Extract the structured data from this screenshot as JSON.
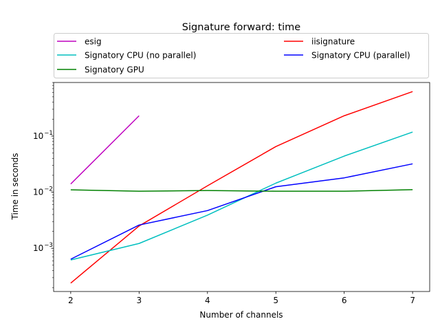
{
  "chart_data": {
    "type": "line",
    "title": "Signature forward: time",
    "xlabel": "Number of channels",
    "ylabel": "Time in seconds",
    "x_ticks": [
      2,
      3,
      4,
      5,
      6,
      7
    ],
    "xlim": [
      1.75,
      7.25
    ],
    "yscale": "log",
    "ylim": [
      0.00017,
      0.9
    ],
    "y_ticks": [
      {
        "value": 0.001,
        "label": "10",
        "exp": "−3"
      },
      {
        "value": 0.01,
        "label": "10",
        "exp": "−2"
      },
      {
        "value": 0.1,
        "label": "10",
        "exp": "−1"
      }
    ],
    "grid": false,
    "legend_placement": "top, above plot",
    "series": [
      {
        "name": "esig",
        "color": "#bf00bf",
        "x": [
          2,
          3
        ],
        "values": [
          0.014,
          0.23
        ]
      },
      {
        "name": "iisignature",
        "color": "#ff0000",
        "x": [
          2,
          3,
          4,
          5,
          6,
          7
        ],
        "values": [
          0.00024,
          0.0025,
          0.013,
          0.065,
          0.23,
          0.62
        ]
      },
      {
        "name": "Signatory CPU (no parallel)",
        "color": "#00bfbf",
        "x": [
          2,
          3,
          4,
          5,
          6,
          7
        ],
        "values": [
          0.00062,
          0.00122,
          0.0039,
          0.0145,
          0.044,
          0.118
        ]
      },
      {
        "name": "Signatory CPU (parallel)",
        "color": "#0000ff",
        "x": [
          2,
          3,
          4,
          5,
          6,
          7
        ],
        "values": [
          0.00064,
          0.0026,
          0.0047,
          0.0125,
          0.018,
          0.032
        ]
      },
      {
        "name": "Signatory GPU",
        "color": "#008000",
        "x": [
          2,
          3,
          4,
          5,
          6,
          7
        ],
        "values": [
          0.011,
          0.0104,
          0.0107,
          0.0104,
          0.0104,
          0.0111
        ]
      }
    ]
  }
}
